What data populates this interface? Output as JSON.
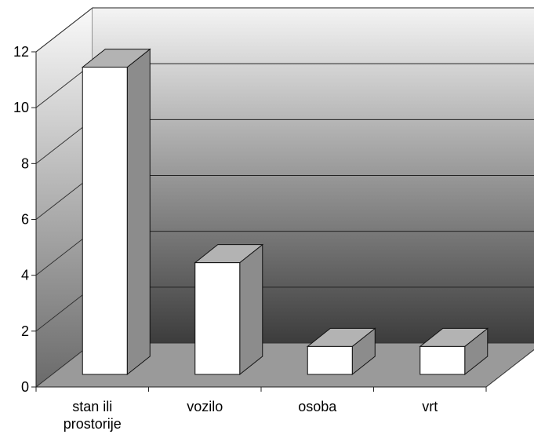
{
  "chart_data": {
    "type": "bar",
    "style": "3d",
    "categories": [
      [
        "stan ili",
        "prostorije"
      ],
      [
        "vozilo"
      ],
      [
        "osoba"
      ],
      [
        "vrt"
      ]
    ],
    "values": [
      11,
      4,
      1,
      1
    ],
    "ylim": [
      0,
      12
    ],
    "yticks": [
      "0",
      "2",
      "4",
      "6",
      "8",
      "10",
      "12"
    ],
    "grid": true,
    "legend": "none",
    "colors": {
      "bar_front": "#ffffff",
      "bar_top": "#b3b3b3",
      "bar_side": "#8c8c8c",
      "wall_top": "#f4f4f4",
      "wall_bottom": "#3c3c3c",
      "floor": "#9a9a9a"
    }
  }
}
